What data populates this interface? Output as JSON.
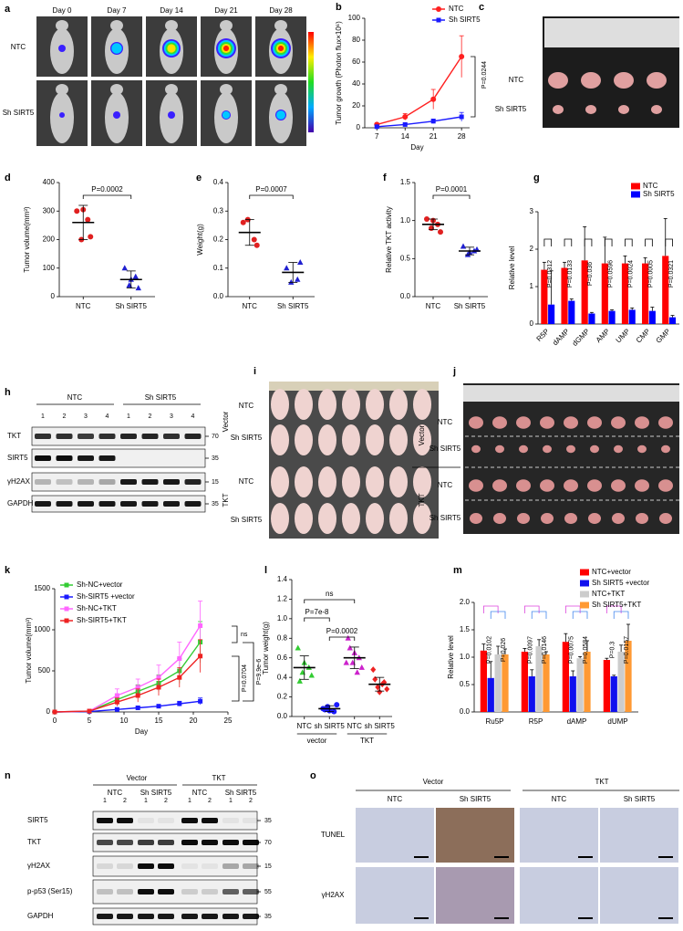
{
  "figure": {
    "panel_labels": [
      "a",
      "b",
      "c",
      "d",
      "e",
      "f",
      "g",
      "h",
      "i",
      "j",
      "k",
      "l",
      "m",
      "n",
      "o"
    ],
    "a": {
      "days": [
        "Day 0",
        "Day 7",
        "Day 14",
        "Day 21",
        "Day 28"
      ],
      "rows": [
        "NTC",
        "Sh SIRT5"
      ]
    },
    "c": {
      "rows": [
        "NTC",
        "Sh SIRT5"
      ]
    },
    "h": {
      "groups": [
        "NTC",
        "Sh SIRT5"
      ],
      "lanes": [
        1,
        2,
        3,
        4,
        1,
        2,
        3,
        4
      ],
      "proteins": [
        "TKT",
        "SIRT5",
        "γH2AX",
        "GAPDH"
      ],
      "markers": [
        70,
        35,
        15,
        35
      ]
    },
    "i": {
      "treatments": [
        "Vector",
        "TKT"
      ],
      "rows": [
        "NTC",
        "Sh SIRT5",
        "NTC",
        "Sh SIRT5"
      ]
    },
    "j": {
      "treatments": [
        "Vector",
        "TKT"
      ],
      "rows": [
        "NTC",
        "Sh SIRT5",
        "NTC",
        "Sh SIRT5"
      ]
    },
    "n": {
      "treatments": [
        "Vector",
        "TKT"
      ],
      "groups": [
        "NTC",
        "Sh SIRT5",
        "NTC",
        "Sh SIRT5"
      ],
      "lanes": [
        1,
        2,
        1,
        2,
        1,
        2,
        1,
        2
      ],
      "proteins": [
        "SIRT5",
        "TKT",
        "γH2AX",
        "p-p53 (Ser15)",
        "GAPDH"
      ],
      "markers": [
        35,
        70,
        15,
        55,
        35
      ]
    },
    "o": {
      "treatments": [
        "Vector",
        "TKT"
      ],
      "groups": [
        "NTC",
        "Sh SIRT5",
        "NTC",
        "Sh SIRT5"
      ],
      "rows": [
        "TUNEL",
        "γH2AX"
      ]
    }
  },
  "chart_data": [
    {
      "type": "line",
      "x": [
        7,
        14,
        21,
        28
      ],
      "xlim": [
        4,
        30
      ],
      "xticks": [
        7,
        14,
        21,
        28
      ],
      "xlabel": "Day",
      "ylabel": "Tumor growth (Photon flux×10⁶)",
      "ylim": [
        0,
        100
      ],
      "yticks": [
        0,
        20,
        40,
        60,
        80,
        100
      ],
      "series": [
        {
          "name": "NTC",
          "color": "#ff2020",
          "marker": "circle",
          "values": [
            3,
            10,
            26,
            65
          ],
          "errors": [
            1,
            3,
            9,
            19
          ]
        },
        {
          "name": "Sh SIRT5",
          "color": "#1a1aff",
          "marker": "square",
          "values": [
            1,
            3,
            6,
            10
          ],
          "errors": [
            0.5,
            1,
            2,
            4
          ]
        }
      ],
      "annotations": [
        "P=0.0244"
      ]
    },
    {
      "type": "dot",
      "ylabel": "Tumor volume(mm³)",
      "ylim": [
        0,
        400
      ],
      "yticks": [
        0,
        100,
        200,
        300,
        400
      ],
      "groups": [
        {
          "name": "NTC",
          "color": "#e02020",
          "marker": "circle",
          "points": [
            300,
            270,
            200,
            210,
            305
          ],
          "mean": 260,
          "sd": 60
        },
        {
          "name": "Sh SIRT5",
          "color": "#2020d0",
          "marker": "triangle",
          "points": [
            100,
            70,
            40,
            30,
            60
          ],
          "mean": 60,
          "sd": 30
        }
      ],
      "annotations": [
        "P=0.0002"
      ]
    },
    {
      "type": "dot",
      "ylabel": "Weight(g)",
      "ylim": [
        0,
        0.4
      ],
      "yticks": [
        {
          "value": 0,
          "label": "0.0"
        },
        0.1,
        0.2,
        0.3,
        0.4
      ],
      "groups": [
        {
          "name": "NTC",
          "color": "#e02020",
          "marker": "circle",
          "points": [
            0.26,
            0.2,
            0.27,
            0.18
          ],
          "mean": 0.225,
          "sd": 0.045
        },
        {
          "name": "Sh SIRT5",
          "color": "#2020d0",
          "marker": "triangle",
          "points": [
            0.1,
            0.06,
            0.05,
            0.12
          ],
          "mean": 0.085,
          "sd": 0.035
        }
      ],
      "annotations": [
        "P=0.0007"
      ]
    },
    {
      "type": "dot",
      "ylabel": "Relative TKT activity",
      "ylim": [
        0,
        1.5
      ],
      "yticks": [
        {
          "value": 0,
          "label": "0.0"
        },
        0.5,
        {
          "value": 1,
          "label": "1.0"
        },
        1.5
      ],
      "groups": [
        {
          "name": "NTC",
          "color": "#e02020",
          "marker": "circle",
          "points": [
            1.02,
            0.95,
            0.9,
            0.85,
            1.0
          ],
          "mean": 0.95,
          "sd": 0.07
        },
        {
          "name": "Sh SIRT5",
          "color": "#2020d0",
          "marker": "triangle",
          "points": [
            0.66,
            0.6,
            0.55,
            0.62,
            0.58
          ],
          "mean": 0.6,
          "sd": 0.05
        }
      ],
      "annotations": [
        "P=0.0001"
      ]
    },
    {
      "type": "bar",
      "ylabel": "Relative level",
      "ylim": [
        0,
        3
      ],
      "yticks": [
        0,
        1,
        2,
        3
      ],
      "categories": [
        "R5P",
        "dAMP",
        "dGMP",
        "AMP",
        "UMP",
        "CMP",
        "GMP"
      ],
      "series": [
        {
          "name": "NTC",
          "color": "#ff0000",
          "values": [
            1.45,
            1.5,
            1.7,
            1.62,
            1.62,
            1.62,
            1.82
          ],
          "errors": [
            0.2,
            0.15,
            0.9,
            0.7,
            0.2,
            0.15,
            1.0
          ]
        },
        {
          "name": "Sh SIRT5",
          "color": "#0000ff",
          "values": [
            0.52,
            0.62,
            0.28,
            0.35,
            0.38,
            0.35,
            0.18
          ],
          "errors": [
            0.9,
            0.05,
            0.03,
            0.03,
            0.05,
            0.1,
            0.05
          ]
        }
      ],
      "annotations": [
        "P=0.0312",
        "P=0.0133",
        "P=0.036",
        "P=0.0596",
        "P=0.0024",
        "P=0.0005",
        "P=0.0321"
      ]
    },
    {
      "type": "line",
      "x": [
        0,
        5,
        9,
        12,
        15,
        18,
        21
      ],
      "xlim": [
        0,
        25
      ],
      "xticks": [
        0,
        5,
        10,
        15,
        20,
        25
      ],
      "xlabel": "Day",
      "ylabel": "Tumor volume(mm³)",
      "ylim": [
        0,
        1500
      ],
      "yticks": [
        0,
        500,
        1000,
        1500
      ],
      "series": [
        {
          "name": "Sh-NC+vector",
          "color": "#33cc33",
          "marker": "square",
          "values": [
            0,
            10,
            150,
            250,
            350,
            500,
            850
          ],
          "errors": [
            0,
            5,
            60,
            80,
            100,
            150,
            250
          ]
        },
        {
          "name": "Sh-SIRT5 +vector",
          "color": "#1a1aff",
          "marker": "square",
          "values": [
            0,
            5,
            30,
            50,
            70,
            100,
            130
          ],
          "errors": [
            0,
            3,
            10,
            15,
            20,
            30,
            40
          ]
        },
        {
          "name": "Sh-NC+TKT",
          "color": "#ff66ff",
          "marker": "square",
          "values": [
            0,
            10,
            200,
            300,
            420,
            650,
            1050
          ],
          "errors": [
            0,
            5,
            80,
            100,
            150,
            200,
            300
          ]
        },
        {
          "name": "Sh-SIRT5+TKT",
          "color": "#ee2222",
          "marker": "square",
          "values": [
            0,
            10,
            120,
            200,
            300,
            420,
            680
          ],
          "errors": [
            0,
            5,
            50,
            80,
            100,
            120,
            200
          ]
        }
      ],
      "annotations": [
        "ns",
        "P=0.0704",
        "P=9.9e-6"
      ]
    },
    {
      "type": "dot",
      "ylabel": "Tumor weight(g)",
      "ylim": [
        0,
        1.4
      ],
      "yticks": [
        {
          "value": 0,
          "label": "0.0"
        },
        0.2,
        0.4,
        0.6,
        0.8,
        {
          "value": 1,
          "label": "1.0"
        },
        1.2,
        1.4
      ],
      "groups": [
        {
          "name": "NTC",
          "color": "#33cc33",
          "marker": "triangle",
          "points": [
            0.7,
            0.5,
            0.45,
            0.42,
            0.55,
            0.36
          ],
          "mean": 0.5,
          "sd": 0.12
        },
        {
          "name": "sh SIRT5",
          "color": "#1a1aff",
          "marker": "circle",
          "points": [
            0.08,
            0.05,
            0.1,
            0.12,
            0.06,
            0.07
          ],
          "mean": 0.08,
          "sd": 0.03
        },
        {
          "name": "NTC",
          "color": "#cc22cc",
          "marker": "triangle",
          "points": [
            0.8,
            0.6,
            0.55,
            0.5,
            0.65,
            0.7,
            0.45,
            0.55
          ],
          "mean": 0.6,
          "sd": 0.11
        },
        {
          "name": "sh SIRT5",
          "color": "#ee2222",
          "marker": "diamond",
          "points": [
            0.48,
            0.35,
            0.3,
            0.28,
            0.25,
            0.38,
            0.33
          ],
          "mean": 0.33,
          "sd": 0.07
        }
      ],
      "group_labels": [
        "vector",
        "TKT"
      ],
      "annotations": [
        "ns",
        "P=7e-8",
        "P=0.0002"
      ]
    },
    {
      "type": "bar",
      "ylabel": "Relative level",
      "ylim": [
        0,
        2
      ],
      "yticks": [
        {
          "value": 0,
          "label": "0.0"
        },
        0.5,
        {
          "value": 1,
          "label": "1.0"
        },
        1.5,
        {
          "value": 2,
          "label": "2.0"
        }
      ],
      "categories": [
        "Ru5P",
        "R5P",
        "dAMP",
        "dUMP"
      ],
      "series": [
        {
          "name": "NTC+vector",
          "color": "#ff0000",
          "values": [
            1.12,
            1.1,
            1.28,
            0.95
          ],
          "errors": [
            0.12,
            0.06,
            0.15,
            0.03
          ]
        },
        {
          "name": "Sh SIRT5 +vector",
          "color": "#1010ee",
          "values": [
            0.62,
            0.65,
            0.65,
            0.65
          ],
          "errors": [
            0.3,
            0.12,
            0.1,
            0.02
          ]
        },
        {
          "name": "NTC+TKT",
          "color": "#cccccc",
          "values": [
            1.05,
            1.2,
            0.98,
            1.1
          ],
          "errors": [
            0.15,
            0.12,
            0.03,
            0.12
          ]
        },
        {
          "name": "Sh SIRT5+TKT",
          "color": "#ff9933",
          "values": [
            1.05,
            1.05,
            1.1,
            1.3
          ],
          "errors": [
            0.1,
            0.05,
            0.2,
            0.3
          ]
        }
      ],
      "annotations": [
        "P=0.0102",
        "P=0.026",
        "P=0.0097",
        "P=0.0146",
        "P=0.0075",
        "P=0.0584",
        "P=0.3",
        "P=0.0157"
      ]
    }
  ]
}
